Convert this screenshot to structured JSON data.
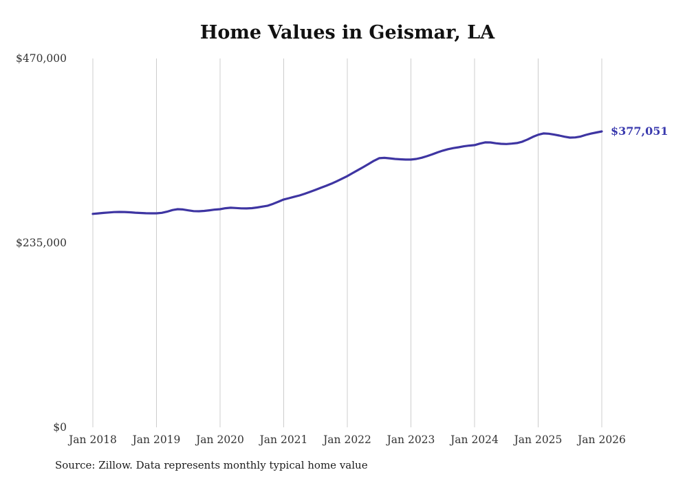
{
  "title": "Home Values in Geismar, LA",
  "source_note": "Source: Zillow. Data represents monthly typical home value",
  "end_label": "$377,051",
  "colors": {
    "line": "#3e35a2",
    "end_label": "#3a3aae",
    "grid": "#cccccc",
    "axis_text": "#333333",
    "title": "#111111"
  },
  "chart_data": {
    "type": "line",
    "title": "Home Values in Geismar, LA",
    "xlabel": "",
    "ylabel": "",
    "ylim": [
      0,
      470000
    ],
    "y_ticks": [
      0,
      235000,
      470000
    ],
    "y_tick_labels": [
      "$0",
      "$235,000",
      "$470,000"
    ],
    "x_tick_labels": [
      "Jan 2018",
      "Jan 2019",
      "Jan 2020",
      "Jan 2021",
      "Jan 2022",
      "Jan 2023",
      "Jan 2024",
      "Jan 2025",
      "Jan 2026"
    ],
    "grid": "vertical-only",
    "legend": "none",
    "interval": "monthly",
    "final_value": 377051,
    "x": [
      "2018-01",
      "2018-02",
      "2018-03",
      "2018-04",
      "2018-05",
      "2018-06",
      "2018-07",
      "2018-08",
      "2018-09",
      "2018-10",
      "2018-11",
      "2018-12",
      "2019-01",
      "2019-02",
      "2019-03",
      "2019-04",
      "2019-05",
      "2019-06",
      "2019-07",
      "2019-08",
      "2019-09",
      "2019-10",
      "2019-11",
      "2019-12",
      "2020-01",
      "2020-02",
      "2020-03",
      "2020-04",
      "2020-05",
      "2020-06",
      "2020-07",
      "2020-08",
      "2020-09",
      "2020-10",
      "2020-11",
      "2020-12",
      "2021-01",
      "2021-02",
      "2021-03",
      "2021-04",
      "2021-05",
      "2021-06",
      "2021-07",
      "2021-08",
      "2021-09",
      "2021-10",
      "2021-11",
      "2021-12",
      "2022-01",
      "2022-02",
      "2022-03",
      "2022-04",
      "2022-05",
      "2022-06",
      "2022-07",
      "2022-08",
      "2022-09",
      "2022-10",
      "2022-11",
      "2022-12",
      "2023-01",
      "2023-02",
      "2023-03",
      "2023-04",
      "2023-05",
      "2023-06",
      "2023-07",
      "2023-08",
      "2023-09",
      "2023-10",
      "2023-11",
      "2023-12",
      "2024-01",
      "2024-02",
      "2024-03",
      "2024-04",
      "2024-05",
      "2024-06",
      "2024-07",
      "2024-08",
      "2024-09",
      "2024-10",
      "2024-11",
      "2024-12",
      "2025-01",
      "2025-02",
      "2025-03",
      "2025-04",
      "2025-05",
      "2025-06",
      "2025-07",
      "2025-08",
      "2025-09",
      "2025-10",
      "2025-11",
      "2025-12",
      "2026-01"
    ],
    "series": [
      {
        "name": "Typical home value",
        "values": [
          272000,
          272600,
          273200,
          273800,
          274300,
          274500,
          274400,
          274000,
          273500,
          273100,
          272800,
          272700,
          272700,
          273300,
          274800,
          276800,
          278000,
          277600,
          276500,
          275500,
          275300,
          275800,
          276600,
          277400,
          278000,
          279200,
          279800,
          279500,
          279000,
          278900,
          279300,
          280200,
          281300,
          282400,
          284800,
          287500,
          290300,
          292000,
          293800,
          295500,
          297700,
          300100,
          302600,
          305200,
          307800,
          310500,
          313600,
          316800,
          320100,
          324000,
          327800,
          331500,
          335500,
          339500,
          342900,
          343400,
          342800,
          342000,
          341500,
          341200,
          341200,
          342000,
          343500,
          345500,
          347800,
          350300,
          352600,
          354400,
          355800,
          356900,
          358100,
          359000,
          359600,
          361500,
          363100,
          363000,
          362000,
          361300,
          361000,
          361500,
          362200,
          364000,
          366800,
          370100,
          372800,
          374500,
          374200,
          373000,
          371800,
          370300,
          369200,
          369400,
          370600,
          372700,
          374300,
          375700,
          377051
        ]
      }
    ]
  }
}
